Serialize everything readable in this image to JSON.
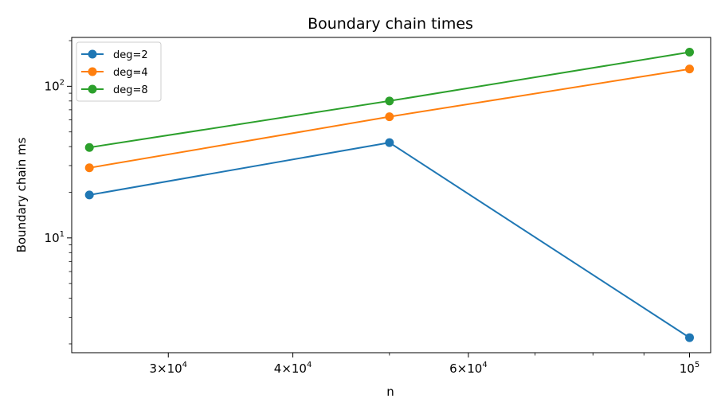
{
  "chart_data": {
    "type": "line",
    "title": "Boundary chain times",
    "xlabel": "n",
    "ylabel": "Boundary chain ms",
    "xscale": "log",
    "yscale": "log",
    "xlim": [
      24000,
      105000
    ],
    "ylim": [
      1.75,
      210
    ],
    "x": [
      25000,
      50000,
      100000
    ],
    "x_ticks": [
      {
        "value": 30000,
        "base": "3×10",
        "exp": "4"
      },
      {
        "value": 40000,
        "base": "4×10",
        "exp": "4"
      },
      {
        "value": 60000,
        "base": "6×10",
        "exp": "4"
      },
      {
        "value": 100000,
        "base": "10",
        "exp": "5"
      }
    ],
    "y_ticks": [
      {
        "value": 10,
        "base": "10",
        "exp": "1"
      },
      {
        "value": 100,
        "base": "10",
        "exp": "2"
      }
    ],
    "series": [
      {
        "name": "deg=2",
        "color": "#1f77b4",
        "values": [
          19.2,
          42.5,
          2.2
        ]
      },
      {
        "name": "deg=4",
        "color": "#ff7f0e",
        "values": [
          29,
          63,
          130
        ]
      },
      {
        "name": "deg=8",
        "color": "#2ca02c",
        "values": [
          39.5,
          80,
          168
        ]
      }
    ],
    "legend": "top-left",
    "grid": false
  }
}
